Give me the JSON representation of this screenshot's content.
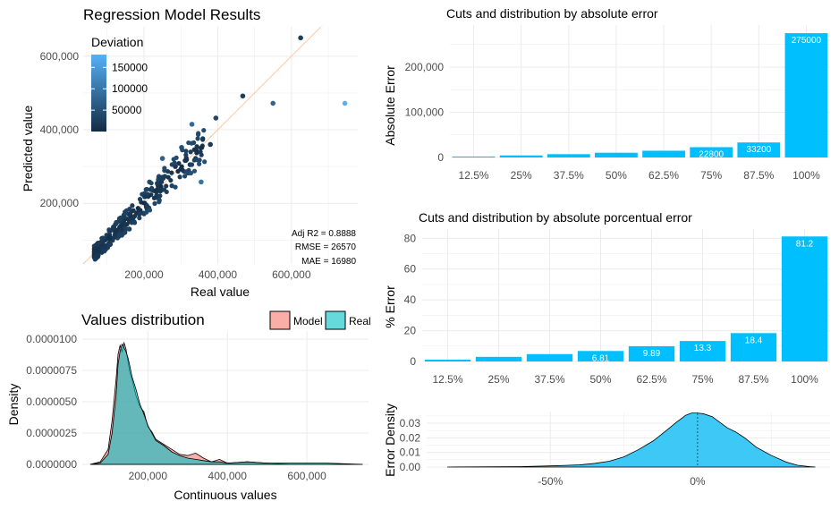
{
  "colors": {
    "bar": "#00bfff",
    "model_fill": "#f8766d",
    "real_fill": "#00bfc4",
    "density_fill": "#3ec8f5",
    "point_dark": "#132b43",
    "point_light": "#56b1f7",
    "identity_line": "#ffc8a0",
    "grid": "#ebebeb"
  },
  "chart_data": [
    {
      "id": "scatter",
      "type": "scatter",
      "title": "Regression Model Results",
      "xlabel": "Real value",
      "ylabel": "Predicted value",
      "xlim": [
        35000,
        780000
      ],
      "ylim": [
        35000,
        680000
      ],
      "xticks": [
        "200,000",
        "400,000",
        "600,000"
      ],
      "xtick_values": [
        200000,
        400000,
        600000
      ],
      "yticks": [
        "200,000",
        "400,000",
        "600,000"
      ],
      "ytick_values": [
        200000,
        400000,
        600000
      ],
      "legend": {
        "title": "Deviation",
        "labels": [
          "150000",
          "100000",
          "50000"
        ],
        "values": [
          150000,
          100000,
          50000
        ],
        "range": [
          0,
          180000
        ]
      },
      "metrics": [
        "Adj R2 =  0.8888",
        "RMSE = 26570",
        "MAE = 16980"
      ],
      "points": [
        [
          625000,
          650000,
          25000
        ],
        [
          468000,
          492000,
          24000
        ],
        [
          550000,
          472000,
          78000
        ],
        [
          745000,
          472000,
          180000
        ],
        [
          395000,
          432000,
          37000
        ],
        [
          330000,
          415000,
          85000
        ],
        [
          380000,
          360000,
          20000
        ],
        [
          302000,
          352000,
          50000
        ],
        [
          355000,
          258000,
          97000
        ],
        [
          250000,
          322000,
          72000
        ],
        [
          325000,
          305000,
          20000
        ],
        [
          285000,
          300000,
          15000
        ],
        [
          215000,
          258000,
          43000
        ],
        [
          160000,
          130000,
          30000
        ],
        [
          80000,
          92000,
          12000
        ],
        [
          110000,
          105000,
          5000
        ]
      ]
    },
    {
      "id": "density",
      "type": "area",
      "title": "Values distribution",
      "xlabel": "Continuous values",
      "ylabel": "Density",
      "xlim": [
        35000,
        755000
      ],
      "ylim": [
        0,
        1e-05
      ],
      "xticks": [
        "200,000",
        "400,000",
        "600,000"
      ],
      "xtick_values": [
        200000,
        400000,
        600000
      ],
      "yticks": [
        "0.0000000",
        "0.0000025",
        "0.0000050",
        "0.0000075",
        "0.0000100"
      ],
      "ytick_values": [
        0,
        2.5e-06,
        5e-06,
        7.5e-06,
        1e-05
      ],
      "legend": [
        "Model",
        "Real"
      ],
      "series": [
        {
          "name": "Model",
          "x": [
            55000,
            80000,
            100000,
            110000,
            120000,
            125000,
            130000,
            135000,
            140000,
            145000,
            150000,
            155000,
            160000,
            170000,
            180000,
            190000,
            200000,
            210000,
            220000,
            240000,
            260000,
            280000,
            300000,
            320000,
            340000,
            360000,
            380000,
            400000,
            450000,
            500000,
            560000,
            650000,
            740000
          ],
          "y": [
            0,
            2e-07,
            1.2e-06,
            3.5e-06,
            6.8e-06,
            8.8e-06,
            9.5e-06,
            9e-06,
            9.7e-06,
            9.2e-06,
            8.2e-06,
            7.3e-06,
            6.8e-06,
            5.5e-06,
            4.6e-06,
            4.2e-06,
            3e-06,
            2.6e-06,
            2e-06,
            1.6e-06,
            1.2e-06,
            8e-07,
            7e-07,
            9e-07,
            5e-07,
            2e-07,
            4e-07,
            1e-07,
            2e-07,
            1e-07,
            0,
            0,
            0
          ]
        },
        {
          "name": "Real",
          "x": [
            55000,
            80000,
            100000,
            110000,
            120000,
            125000,
            130000,
            135000,
            140000,
            145000,
            150000,
            155000,
            160000,
            170000,
            180000,
            190000,
            200000,
            210000,
            220000,
            240000,
            260000,
            280000,
            300000,
            320000,
            340000,
            360000,
            380000,
            400000,
            450000,
            500000,
            560000,
            650000,
            740000
          ],
          "y": [
            0,
            1e-07,
            8e-07,
            2.5e-06,
            5.5e-06,
            8e-06,
            9e-06,
            9.6e-06,
            9.3e-06,
            9e-06,
            8.5e-06,
            7.8e-06,
            7e-06,
            6e-06,
            4.8e-06,
            4e-06,
            3.1e-06,
            2.5e-06,
            1.9e-06,
            1.5e-06,
            1e-06,
            7e-07,
            5e-07,
            4e-07,
            3e-07,
            2e-07,
            2e-07,
            1e-07,
            2e-07,
            1e-07,
            1e-07,
            1e-07,
            0
          ]
        }
      ]
    },
    {
      "id": "abs-error",
      "type": "bar",
      "title": "Cuts and distribution by absolute error",
      "ylabel": "Absolute Error",
      "categories": [
        "12.5%",
        "25%",
        "37.5%",
        "50%",
        "62.5%",
        "75%",
        "87.5%",
        "100%"
      ],
      "values": [
        2150,
        4550,
        7300,
        10500,
        14930,
        22800,
        33200,
        275000
      ],
      "labels": [
        "",
        "",
        "",
        "",
        "",
        "22800",
        "33200",
        "275000"
      ],
      "ylim": [
        0,
        293000
      ],
      "yticks": [
        "0",
        "100,000",
        "200,000"
      ],
      "ytick_values": [
        0,
        100000,
        200000
      ]
    },
    {
      "id": "pct-error",
      "type": "bar",
      "title": "Cuts and distribution by absolute porcentual error",
      "ylabel": "% Error",
      "categories": [
        "12.5%",
        "25%",
        "37.5%",
        "50%",
        "62.5%",
        "75%",
        "87.5%",
        "100%"
      ],
      "values": [
        1.2,
        3.0,
        4.8,
        6.81,
        9.89,
        13.3,
        18.4,
        81.2
      ],
      "labels": [
        "",
        "",
        "",
        "6.81",
        "9.89",
        "13.3",
        "18.4",
        "81.2"
      ],
      "ylim": [
        0,
        86
      ],
      "yticks": [
        "0",
        "20",
        "40",
        "60",
        "80"
      ],
      "ytick_values": [
        0,
        20,
        40,
        60,
        80
      ]
    },
    {
      "id": "err-density",
      "type": "area",
      "ylabel": "Error Density",
      "xlim": [
        -0.92,
        0.45
      ],
      "ylim": [
        0,
        0.038
      ],
      "xticks": [
        "-50%",
        "0%"
      ],
      "xtick_values": [
        -0.5,
        0
      ],
      "yticks": [
        "0.00",
        "0.01",
        "0.02",
        "0.03"
      ],
      "ytick_values": [
        0,
        0.01,
        0.02,
        0.03
      ],
      "x": [
        -0.85,
        -0.6,
        -0.5,
        -0.4,
        -0.35,
        -0.3,
        -0.25,
        -0.2,
        -0.15,
        -0.1,
        -0.07,
        -0.04,
        -0.02,
        0,
        0.02,
        0.05,
        0.08,
        0.1,
        0.13,
        0.16,
        0.2,
        0.25,
        0.3,
        0.34,
        0.38,
        0.4
      ],
      "y": [
        0,
        0.0003,
        0.0008,
        0.0015,
        0.0025,
        0.004,
        0.007,
        0.012,
        0.018,
        0.026,
        0.031,
        0.0355,
        0.037,
        0.037,
        0.0365,
        0.0345,
        0.03,
        0.027,
        0.024,
        0.02,
        0.0135,
        0.008,
        0.0035,
        0.0012,
        0.0003,
        0
      ]
    }
  ]
}
